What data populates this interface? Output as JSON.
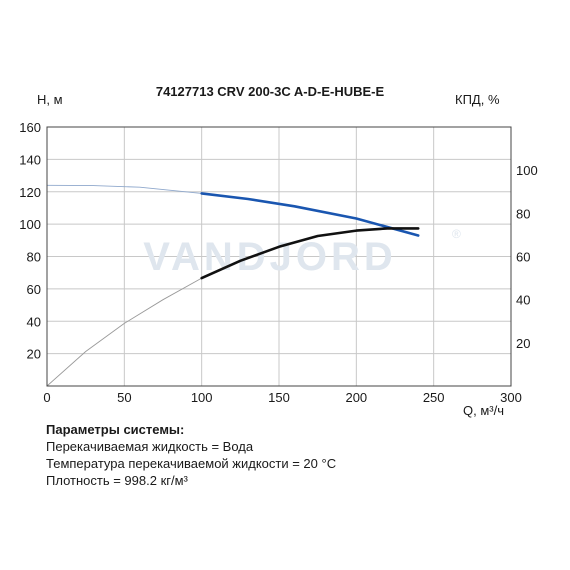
{
  "chart_data": {
    "type": "line",
    "title": "74127713 CRV 200-3C A-D-E-HUBE-E",
    "watermark": "VANDJORD",
    "watermark_mark": "®",
    "xlabel": "Q, м³/ч",
    "ylabel_left": "H, м",
    "ylabel_right": "КПД, %",
    "xlim": [
      0,
      300
    ],
    "ylim_left": [
      0,
      160
    ],
    "ylim_right": [
      0,
      120
    ],
    "x_ticks": [
      0,
      50,
      100,
      150,
      200,
      250,
      300
    ],
    "y_ticks_left": [
      20,
      40,
      60,
      80,
      100,
      120,
      140,
      160
    ],
    "y_ticks_right": [
      20,
      40,
      60,
      80,
      100
    ],
    "grid": true,
    "series": [
      {
        "axis": "left",
        "color": "#1a56b0",
        "extrapolated": [
          [
            0,
            124
          ],
          [
            30,
            123.8
          ],
          [
            60,
            122.8
          ],
          [
            100,
            119
          ]
        ],
        "operating": [
          [
            100,
            119
          ],
          [
            130,
            115.5
          ],
          [
            160,
            111
          ],
          [
            200,
            103.5
          ],
          [
            240,
            93
          ]
        ]
      },
      {
        "axis": "right",
        "color": "#111111",
        "extrapolated": [
          [
            0,
            0
          ],
          [
            25,
            16
          ],
          [
            50,
            29
          ],
          [
            75,
            40
          ],
          [
            100,
            50
          ]
        ],
        "operating": [
          [
            100,
            50
          ],
          [
            125,
            58
          ],
          [
            150,
            64.5
          ],
          [
            175,
            69.5
          ],
          [
            200,
            72
          ],
          [
            220,
            73
          ],
          [
            240,
            73
          ]
        ]
      }
    ]
  },
  "params": {
    "header": "Параметры системы:",
    "lines": [
      "Перекачиваемая жидкость = Вода",
      "Температура перекачиваемой жидкости = 20 °C",
      "Плотность = 998.2 кг/м³"
    ]
  }
}
